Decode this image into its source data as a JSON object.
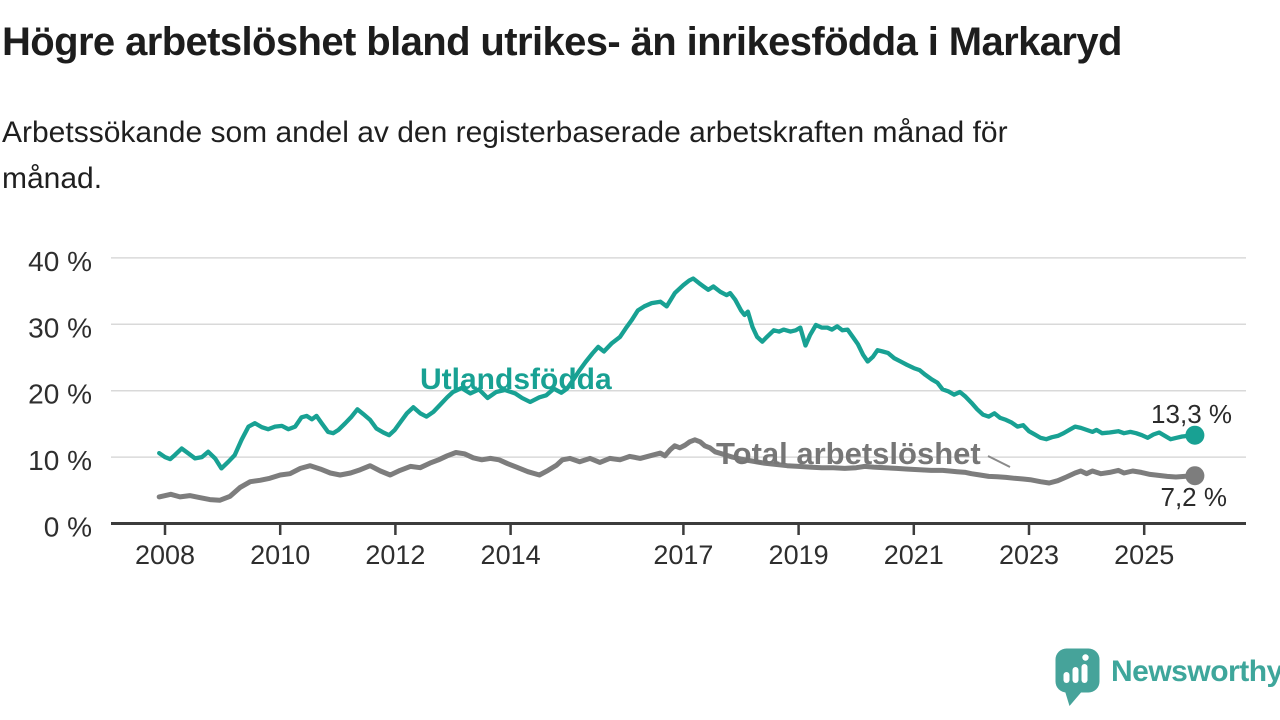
{
  "title": "Högre arbetslöshet bland utrikes- än inrikesfödda i Markaryd",
  "subtitle_lines": [
    "Arbetssökande som andel av den registerbaserade arbetskraften månad för",
    "månad."
  ],
  "branding": {
    "logo_text": "Newsworthy",
    "logo_icon": "speech-bubble-bar-chart",
    "logo_color": "#3ea69b"
  },
  "colors": {
    "teal": "#18a193",
    "gray": "#7d7d7d",
    "gray_label": "#767676",
    "grid": "#d9d9d9",
    "axis": "#3c3c3c",
    "tick_text": "#2e2e2e",
    "value_text": "#2b2b2b"
  },
  "chart_data": {
    "type": "line",
    "unit": "percent of registered labour force",
    "x_axis": "year (monthly data)",
    "ylim": [
      0,
      40
    ],
    "xlim_years": [
      2006.7,
      2026.8
    ],
    "grid": "horizontal",
    "legend_position": "inline-labels",
    "x_ticks": [
      {
        "year": 2008,
        "label": "2008"
      },
      {
        "year": 2010,
        "label": "2010"
      },
      {
        "year": 2012,
        "label": "2012"
      },
      {
        "year": 2014,
        "label": "2014"
      },
      {
        "year": 2017,
        "label": "2017"
      },
      {
        "year": 2019,
        "label": "2019"
      },
      {
        "year": 2021,
        "label": "2021"
      },
      {
        "year": 2023,
        "label": "2023"
      },
      {
        "year": 2025,
        "label": "2025"
      }
    ],
    "y_ticks": [
      {
        "value": 0,
        "label": "0 %"
      },
      {
        "value": 10,
        "label": "10 %"
      },
      {
        "value": 20,
        "label": "20 %"
      },
      {
        "value": 30,
        "label": "30 %"
      },
      {
        "value": 40,
        "label": "40 %"
      }
    ],
    "series": [
      {
        "name": "Utlandsfödda",
        "color": "#18a193",
        "end_value": 13.3,
        "end_label": "13,3 %",
        "points": [
          [
            2007.9,
            10.6
          ],
          [
            2008.0,
            10.0
          ],
          [
            2008.09,
            9.7
          ],
          [
            2008.17,
            10.3
          ],
          [
            2008.29,
            11.3
          ],
          [
            2008.4,
            10.6
          ],
          [
            2008.52,
            9.8
          ],
          [
            2008.64,
            10.0
          ],
          [
            2008.75,
            10.8
          ],
          [
            2008.87,
            9.8
          ],
          [
            2008.98,
            8.3
          ],
          [
            2009.1,
            9.3
          ],
          [
            2009.21,
            10.3
          ],
          [
            2009.33,
            12.6
          ],
          [
            2009.45,
            14.6
          ],
          [
            2009.56,
            15.1
          ],
          [
            2009.68,
            14.5
          ],
          [
            2009.79,
            14.2
          ],
          [
            2009.91,
            14.6
          ],
          [
            2010.03,
            14.7
          ],
          [
            2010.14,
            14.2
          ],
          [
            2010.26,
            14.6
          ],
          [
            2010.37,
            16.0
          ],
          [
            2010.46,
            16.2
          ],
          [
            2010.55,
            15.7
          ],
          [
            2010.63,
            16.2
          ],
          [
            2010.72,
            15.1
          ],
          [
            2010.83,
            13.8
          ],
          [
            2010.92,
            13.6
          ],
          [
            2011.01,
            14.1
          ],
          [
            2011.13,
            15.1
          ],
          [
            2011.24,
            16.1
          ],
          [
            2011.34,
            17.2
          ],
          [
            2011.44,
            16.5
          ],
          [
            2011.56,
            15.6
          ],
          [
            2011.67,
            14.3
          ],
          [
            2011.79,
            13.7
          ],
          [
            2011.89,
            13.3
          ],
          [
            2011.99,
            14.1
          ],
          [
            2012.09,
            15.3
          ],
          [
            2012.2,
            16.6
          ],
          [
            2012.31,
            17.5
          ],
          [
            2012.43,
            16.6
          ],
          [
            2012.54,
            16.1
          ],
          [
            2012.66,
            16.8
          ],
          [
            2012.78,
            17.9
          ],
          [
            2012.9,
            19.0
          ],
          [
            2013.0,
            19.8
          ],
          [
            2013.15,
            20.4
          ],
          [
            2013.3,
            19.6
          ],
          [
            2013.45,
            20.2
          ],
          [
            2013.6,
            18.9
          ],
          [
            2013.75,
            19.8
          ],
          [
            2013.9,
            20.1
          ],
          [
            2014.08,
            19.6
          ],
          [
            2014.2,
            18.9
          ],
          [
            2014.34,
            18.3
          ],
          [
            2014.5,
            19.0
          ],
          [
            2014.62,
            19.3
          ],
          [
            2014.75,
            20.3
          ],
          [
            2014.88,
            19.7
          ],
          [
            2014.98,
            20.3
          ],
          [
            2015.1,
            21.8
          ],
          [
            2015.2,
            23.1
          ],
          [
            2015.3,
            24.3
          ],
          [
            2015.42,
            25.6
          ],
          [
            2015.52,
            26.6
          ],
          [
            2015.62,
            25.9
          ],
          [
            2015.75,
            27.1
          ],
          [
            2015.9,
            28.1
          ],
          [
            2016.0,
            29.4
          ],
          [
            2016.1,
            30.6
          ],
          [
            2016.21,
            32.1
          ],
          [
            2016.32,
            32.7
          ],
          [
            2016.45,
            33.2
          ],
          [
            2016.6,
            33.4
          ],
          [
            2016.71,
            32.7
          ],
          [
            2016.85,
            34.7
          ],
          [
            2017.0,
            35.9
          ],
          [
            2017.1,
            36.6
          ],
          [
            2017.17,
            36.9
          ],
          [
            2017.27,
            36.2
          ],
          [
            2017.35,
            35.7
          ],
          [
            2017.43,
            35.2
          ],
          [
            2017.52,
            35.7
          ],
          [
            2017.64,
            34.9
          ],
          [
            2017.75,
            34.4
          ],
          [
            2017.81,
            34.7
          ],
          [
            2017.9,
            33.7
          ],
          [
            2018.0,
            32.1
          ],
          [
            2018.06,
            31.4
          ],
          [
            2018.12,
            31.9
          ],
          [
            2018.2,
            29.6
          ],
          [
            2018.28,
            28.1
          ],
          [
            2018.37,
            27.4
          ],
          [
            2018.45,
            28.1
          ],
          [
            2018.57,
            29.1
          ],
          [
            2018.66,
            28.9
          ],
          [
            2018.74,
            29.2
          ],
          [
            2018.86,
            28.9
          ],
          [
            2018.95,
            29.1
          ],
          [
            2019.03,
            29.5
          ],
          [
            2019.12,
            26.8
          ],
          [
            2019.2,
            28.4
          ],
          [
            2019.3,
            29.9
          ],
          [
            2019.4,
            29.5
          ],
          [
            2019.5,
            29.5
          ],
          [
            2019.58,
            29.2
          ],
          [
            2019.67,
            29.7
          ],
          [
            2019.76,
            29.1
          ],
          [
            2019.85,
            29.2
          ],
          [
            2019.95,
            28.0
          ],
          [
            2020.03,
            27.0
          ],
          [
            2020.12,
            25.4
          ],
          [
            2020.2,
            24.4
          ],
          [
            2020.29,
            25.1
          ],
          [
            2020.37,
            26.1
          ],
          [
            2020.46,
            25.9
          ],
          [
            2020.55,
            25.7
          ],
          [
            2020.66,
            24.9
          ],
          [
            2020.77,
            24.4
          ],
          [
            2020.88,
            23.9
          ],
          [
            2021.0,
            23.4
          ],
          [
            2021.1,
            23.1
          ],
          [
            2021.2,
            22.4
          ],
          [
            2021.31,
            21.7
          ],
          [
            2021.41,
            21.2
          ],
          [
            2021.5,
            20.2
          ],
          [
            2021.6,
            19.9
          ],
          [
            2021.7,
            19.4
          ],
          [
            2021.8,
            19.8
          ],
          [
            2021.9,
            19.1
          ],
          [
            2022.0,
            18.2
          ],
          [
            2022.1,
            17.2
          ],
          [
            2022.2,
            16.4
          ],
          [
            2022.3,
            16.1
          ],
          [
            2022.4,
            16.6
          ],
          [
            2022.5,
            15.9
          ],
          [
            2022.6,
            15.6
          ],
          [
            2022.7,
            15.2
          ],
          [
            2022.8,
            14.6
          ],
          [
            2022.9,
            14.8
          ],
          [
            2023.0,
            13.9
          ],
          [
            2023.1,
            13.4
          ],
          [
            2023.2,
            12.9
          ],
          [
            2023.3,
            12.7
          ],
          [
            2023.4,
            13.0
          ],
          [
            2023.5,
            13.2
          ],
          [
            2023.6,
            13.6
          ],
          [
            2023.7,
            14.1
          ],
          [
            2023.8,
            14.6
          ],
          [
            2023.9,
            14.4
          ],
          [
            2024.0,
            14.1
          ],
          [
            2024.1,
            13.8
          ],
          [
            2024.17,
            14.1
          ],
          [
            2024.27,
            13.6
          ],
          [
            2024.4,
            13.7
          ],
          [
            2024.55,
            13.9
          ],
          [
            2024.65,
            13.6
          ],
          [
            2024.76,
            13.8
          ],
          [
            2024.86,
            13.6
          ],
          [
            2024.96,
            13.3
          ],
          [
            2025.06,
            12.9
          ],
          [
            2025.16,
            13.4
          ],
          [
            2025.26,
            13.7
          ],
          [
            2025.36,
            13.2
          ],
          [
            2025.46,
            12.7
          ],
          [
            2025.56,
            12.9
          ],
          [
            2025.66,
            13.1
          ],
          [
            2025.76,
            13.2
          ],
          [
            2025.88,
            13.3
          ]
        ]
      },
      {
        "name": "Total arbetslöshet",
        "color": "#7d7d7d",
        "end_value": 7.2,
        "end_label": "7,2 %",
        "points": [
          [
            2007.9,
            4.0
          ],
          [
            2008.1,
            4.4
          ],
          [
            2008.26,
            4.0
          ],
          [
            2008.43,
            4.2
          ],
          [
            2008.6,
            3.9
          ],
          [
            2008.78,
            3.6
          ],
          [
            2008.95,
            3.5
          ],
          [
            2009.13,
            4.1
          ],
          [
            2009.3,
            5.4
          ],
          [
            2009.48,
            6.3
          ],
          [
            2009.65,
            6.5
          ],
          [
            2009.82,
            6.8
          ],
          [
            2010.0,
            7.3
          ],
          [
            2010.17,
            7.5
          ],
          [
            2010.35,
            8.3
          ],
          [
            2010.52,
            8.7
          ],
          [
            2010.7,
            8.2
          ],
          [
            2010.87,
            7.6
          ],
          [
            2011.04,
            7.3
          ],
          [
            2011.22,
            7.6
          ],
          [
            2011.39,
            8.1
          ],
          [
            2011.56,
            8.7
          ],
          [
            2011.74,
            7.9
          ],
          [
            2011.91,
            7.3
          ],
          [
            2012.08,
            8.0
          ],
          [
            2012.26,
            8.6
          ],
          [
            2012.43,
            8.4
          ],
          [
            2012.6,
            9.1
          ],
          [
            2012.75,
            9.6
          ],
          [
            2012.9,
            10.2
          ],
          [
            2013.05,
            10.7
          ],
          [
            2013.2,
            10.5
          ],
          [
            2013.35,
            9.9
          ],
          [
            2013.5,
            9.6
          ],
          [
            2013.65,
            9.8
          ],
          [
            2013.8,
            9.6
          ],
          [
            2013.95,
            9.0
          ],
          [
            2014.1,
            8.5
          ],
          [
            2014.3,
            7.8
          ],
          [
            2014.5,
            7.3
          ],
          [
            2014.65,
            8.0
          ],
          [
            2014.8,
            8.8
          ],
          [
            2014.9,
            9.6
          ],
          [
            2015.03,
            9.8
          ],
          [
            2015.2,
            9.3
          ],
          [
            2015.38,
            9.8
          ],
          [
            2015.55,
            9.2
          ],
          [
            2015.72,
            9.8
          ],
          [
            2015.9,
            9.6
          ],
          [
            2016.07,
            10.1
          ],
          [
            2016.25,
            9.8
          ],
          [
            2016.42,
            10.2
          ],
          [
            2016.6,
            10.6
          ],
          [
            2016.68,
            10.2
          ],
          [
            2016.77,
            11.1
          ],
          [
            2016.85,
            11.7
          ],
          [
            2016.94,
            11.4
          ],
          [
            2017.03,
            11.8
          ],
          [
            2017.11,
            12.3
          ],
          [
            2017.2,
            12.6
          ],
          [
            2017.29,
            12.3
          ],
          [
            2017.37,
            11.7
          ],
          [
            2017.46,
            11.4
          ],
          [
            2017.55,
            10.8
          ],
          [
            2017.7,
            10.4
          ],
          [
            2017.85,
            10.0
          ],
          [
            2018.0,
            9.7
          ],
          [
            2018.2,
            9.4
          ],
          [
            2018.4,
            9.1
          ],
          [
            2018.6,
            8.9
          ],
          [
            2018.8,
            8.7
          ],
          [
            2019.0,
            8.6
          ],
          [
            2019.2,
            8.5
          ],
          [
            2019.4,
            8.4
          ],
          [
            2019.6,
            8.4
          ],
          [
            2019.8,
            8.3
          ],
          [
            2020.0,
            8.4
          ],
          [
            2020.15,
            8.6
          ],
          [
            2020.3,
            8.5
          ],
          [
            2020.5,
            8.4
          ],
          [
            2020.7,
            8.3
          ],
          [
            2020.9,
            8.2
          ],
          [
            2021.1,
            8.1
          ],
          [
            2021.3,
            8.0
          ],
          [
            2021.5,
            8.0
          ],
          [
            2021.62,
            7.9
          ],
          [
            2021.75,
            7.8
          ],
          [
            2021.9,
            7.7
          ],
          [
            2022.0,
            7.5
          ],
          [
            2022.15,
            7.3
          ],
          [
            2022.3,
            7.1
          ],
          [
            2022.45,
            7.05
          ],
          [
            2022.6,
            6.95
          ],
          [
            2022.75,
            6.8
          ],
          [
            2022.9,
            6.7
          ],
          [
            2023.02,
            6.6
          ],
          [
            2023.2,
            6.3
          ],
          [
            2023.35,
            6.1
          ],
          [
            2023.5,
            6.45
          ],
          [
            2023.65,
            7.0
          ],
          [
            2023.8,
            7.6
          ],
          [
            2023.9,
            7.9
          ],
          [
            2024.0,
            7.5
          ],
          [
            2024.1,
            7.9
          ],
          [
            2024.25,
            7.5
          ],
          [
            2024.4,
            7.7
          ],
          [
            2024.55,
            8.0
          ],
          [
            2024.65,
            7.6
          ],
          [
            2024.8,
            7.9
          ],
          [
            2024.95,
            7.7
          ],
          [
            2025.1,
            7.4
          ],
          [
            2025.25,
            7.25
          ],
          [
            2025.4,
            7.1
          ],
          [
            2025.55,
            7.0
          ],
          [
            2025.7,
            7.1
          ],
          [
            2025.88,
            7.2
          ]
        ]
      }
    ]
  }
}
